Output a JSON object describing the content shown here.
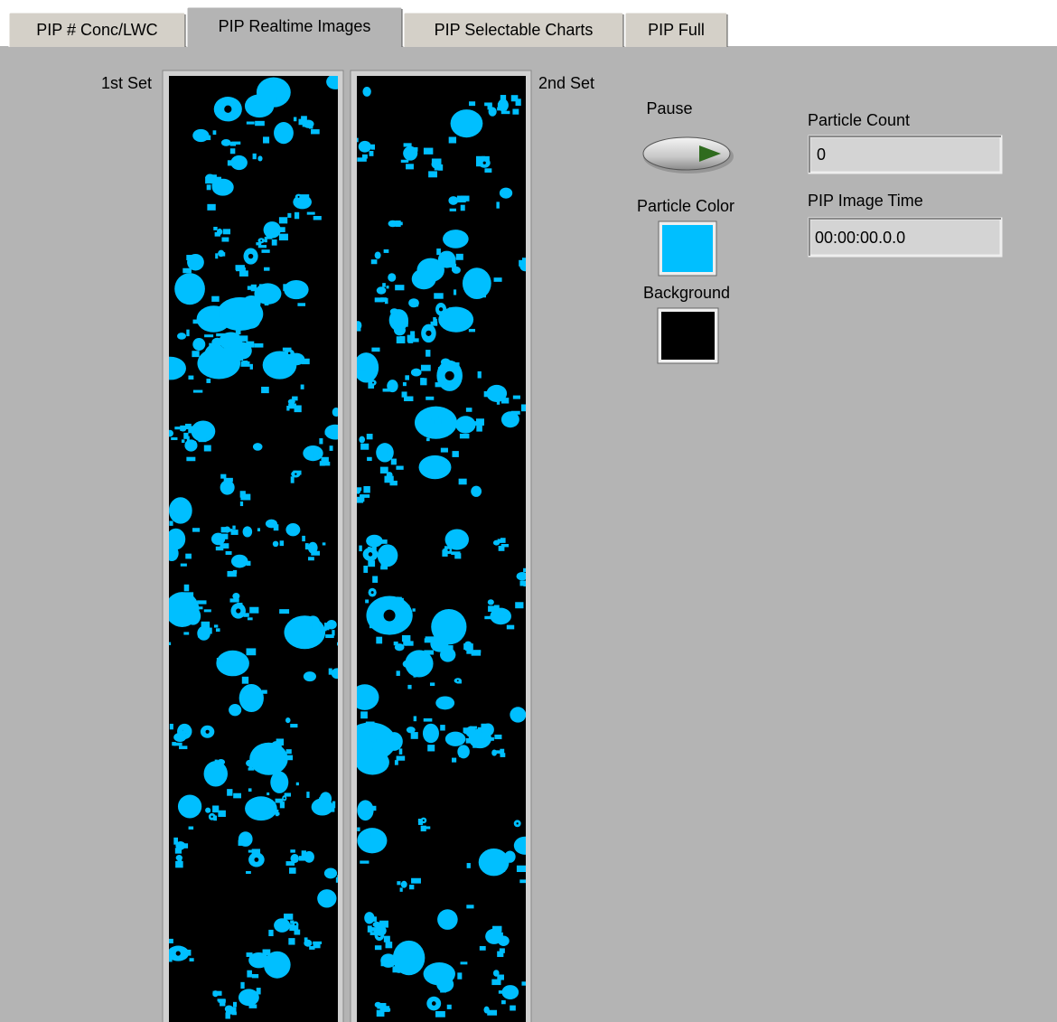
{
  "tabs": [
    "PIP # Conc/LWC",
    "PIP Realtime Images",
    "PIP Selectable Charts",
    "PIP Full"
  ],
  "first_set_label": "1st Set",
  "second_set_label": "2nd Set",
  "pause_label": "Pause",
  "particle_color": {
    "label": "Particle Color",
    "color": "#00bfff"
  },
  "background": {
    "label": "Background",
    "color": "#000000"
  },
  "particle_count": {
    "label": "Particle Count",
    "value": "0"
  },
  "image_time": {
    "label": "PIP Image Time",
    "value": "00:00:00.0.0"
  }
}
